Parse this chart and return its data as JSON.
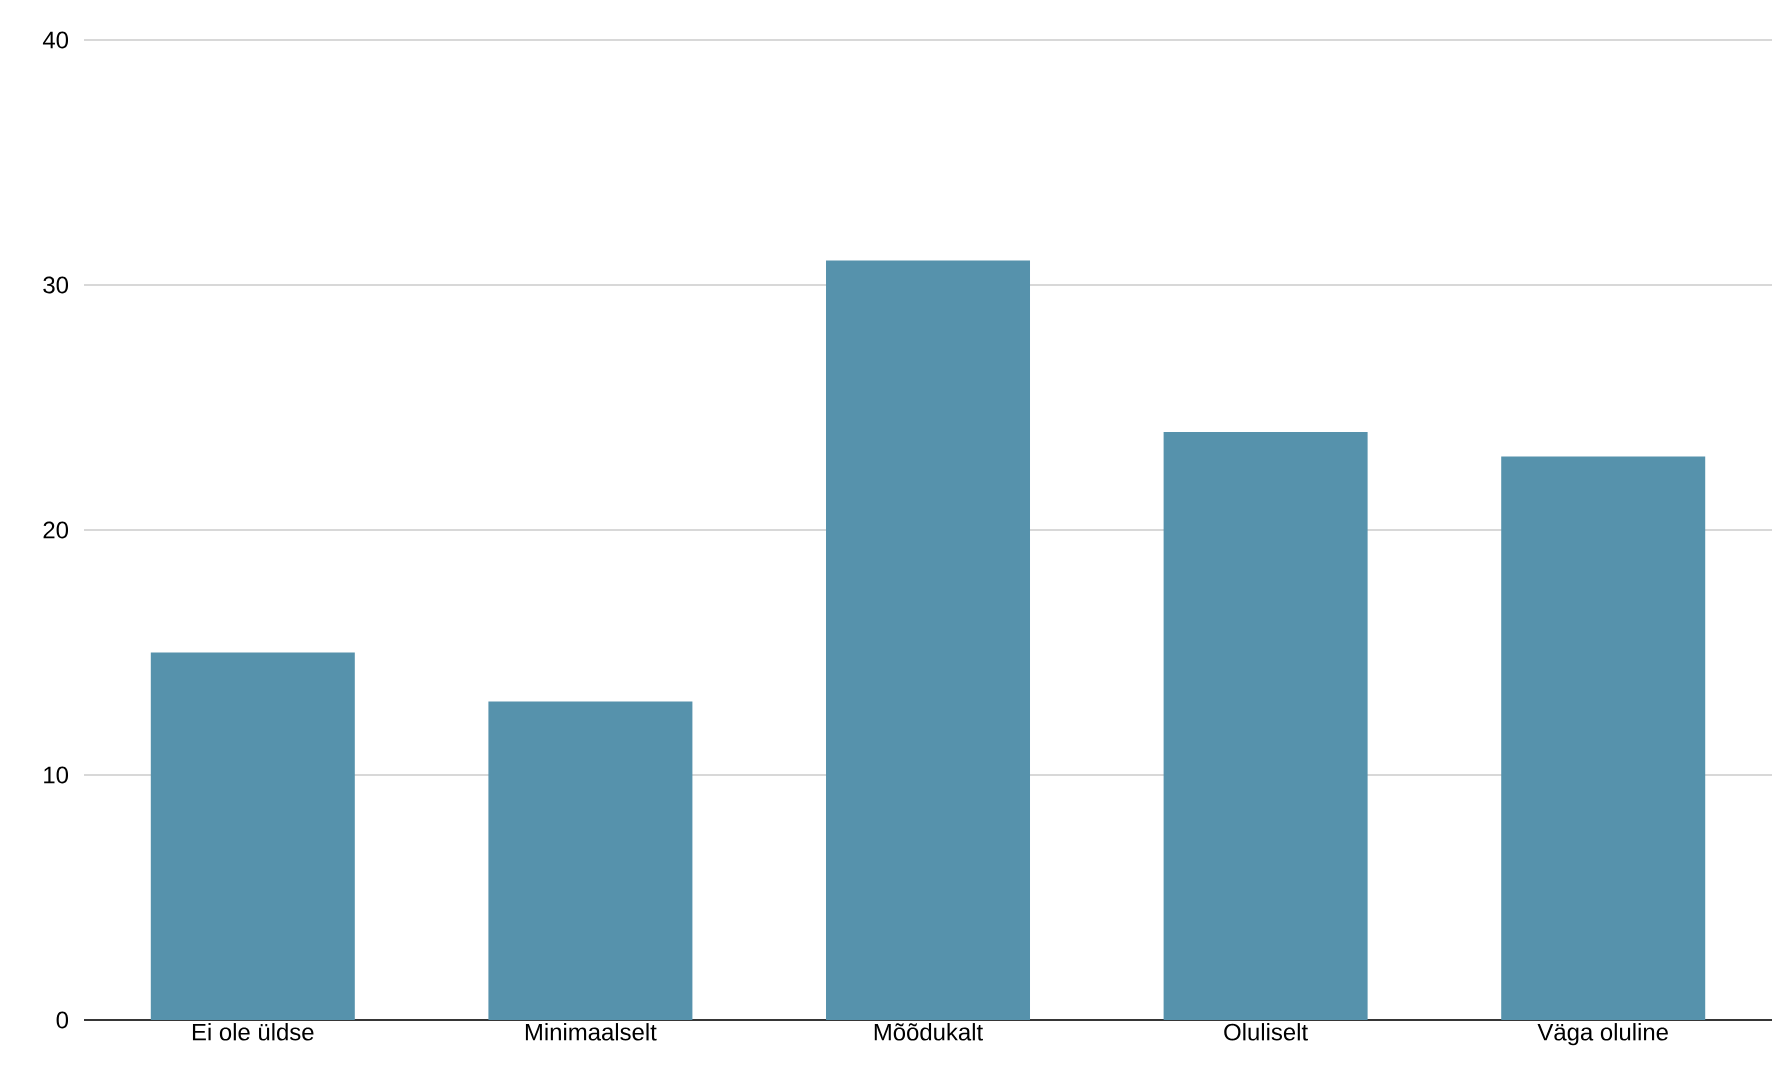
{
  "chart_data": {
    "type": "bar",
    "categories": [
      "Ei ole üldse",
      "Minimaalselt",
      "Mõõdukalt",
      "Oluliselt",
      "Väga oluline"
    ],
    "values": [
      15,
      13,
      31,
      24,
      23
    ],
    "color": "#5692ac",
    "ylim": [
      0,
      40
    ],
    "yticks": [
      0,
      10,
      20,
      30,
      40
    ],
    "grid": "y"
  }
}
